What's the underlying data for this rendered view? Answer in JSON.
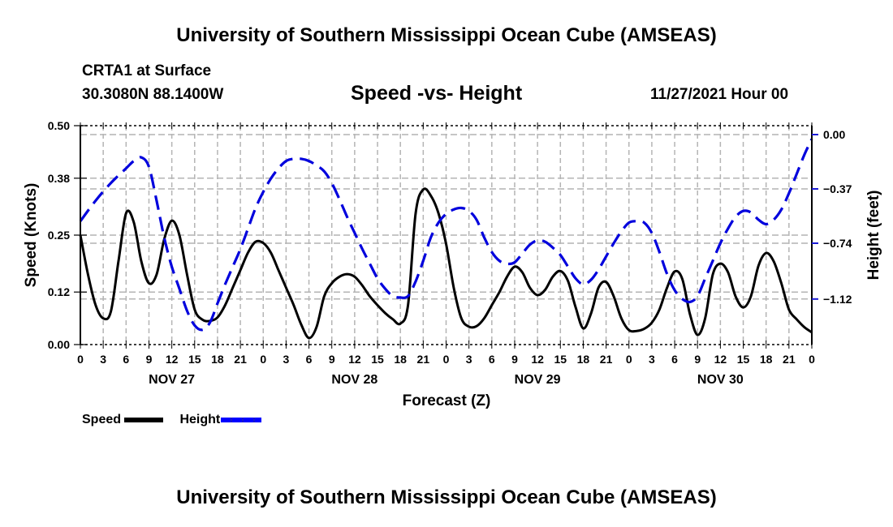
{
  "header": {
    "main_title": "University of Southern Mississippi Ocean Cube (AMSEAS)",
    "station": "CRTA1 at Surface",
    "coordinates": "30.3080N  88.1400W",
    "run_time": "11/27/2021 Hour 00",
    "footer_title": "University of Southern Mississippi Ocean Cube (AMSEAS)"
  },
  "colors": {
    "speed": "#000000",
    "height": "#0000dd",
    "grid": "#b4b4b4"
  },
  "chart_data": {
    "type": "line",
    "title": "Speed -vs- Height",
    "xlabel": "Forecast (Z)",
    "ylabel": "Speed (Knots)",
    "y2label": "Height (feet)",
    "xlim": [
      0,
      96
    ],
    "ylim": [
      0.0,
      0.5
    ],
    "y2lim": [
      -1.5,
      0.06
    ],
    "grid": true,
    "legend_position": "bottom-left",
    "x_tick_labels": [
      "0",
      "3",
      "6",
      "9",
      "12",
      "15",
      "18",
      "21",
      "0",
      "3",
      "6",
      "9",
      "12",
      "15",
      "18",
      "21",
      "0",
      "3",
      "6",
      "9",
      "12",
      "15",
      "18",
      "21",
      "0",
      "3",
      "6",
      "9",
      "12",
      "15",
      "18",
      "21",
      "0"
    ],
    "x_ticks_hours": [
      0,
      3,
      6,
      9,
      12,
      15,
      18,
      21,
      24,
      27,
      30,
      33,
      36,
      39,
      42,
      45,
      48,
      51,
      54,
      57,
      60,
      63,
      66,
      69,
      72,
      75,
      78,
      81,
      84,
      87,
      90,
      93,
      96
    ],
    "day_labels": [
      {
        "label": "NOV 27",
        "hour": 12
      },
      {
        "label": "NOV 28",
        "hour": 36
      },
      {
        "label": "NOV 29",
        "hour": 60
      },
      {
        "label": "NOV 30",
        "hour": 84
      }
    ],
    "y_ticks": [
      0.0,
      0.12,
      0.25,
      0.38,
      0.5
    ],
    "y_tick_labels": [
      "0.00",
      "0.12",
      "0.25",
      "0.38",
      "0.50"
    ],
    "y2_ticks": [
      0.0,
      -0.37,
      -0.74,
      -1.12
    ],
    "y2_tick_labels": [
      "0.00",
      "−0.37",
      "−0.74",
      "−1.12"
    ],
    "series": [
      {
        "name": "Speed",
        "axis": "left",
        "style": "solid",
        "x": [
          0,
          1,
          2,
          3,
          4,
          5,
          6,
          7,
          8,
          9,
          10,
          11,
          12,
          13,
          14,
          15,
          16,
          17,
          18,
          19,
          20,
          21,
          22,
          23,
          24,
          25,
          26,
          27,
          28,
          29,
          30,
          31,
          32,
          33,
          34,
          35,
          36,
          37,
          38,
          39,
          40,
          41,
          42,
          43,
          44,
          45,
          46,
          47,
          48,
          49,
          50,
          51,
          52,
          53,
          54,
          55,
          56,
          57,
          58,
          59,
          60,
          61,
          62,
          63,
          64,
          65,
          66,
          67,
          68,
          69,
          70,
          71,
          72,
          73,
          74,
          75,
          76,
          77,
          78,
          79,
          80,
          81,
          82,
          83,
          84,
          85,
          86,
          87,
          88,
          89,
          90,
          91,
          92,
          93,
          94,
          95,
          96
        ],
        "values": [
          0.25,
          0.16,
          0.09,
          0.06,
          0.075,
          0.19,
          0.3,
          0.28,
          0.19,
          0.14,
          0.16,
          0.24,
          0.283,
          0.25,
          0.16,
          0.08,
          0.057,
          0.054,
          0.062,
          0.09,
          0.13,
          0.17,
          0.21,
          0.235,
          0.232,
          0.21,
          0.17,
          0.13,
          0.09,
          0.045,
          0.015,
          0.04,
          0.11,
          0.14,
          0.155,
          0.161,
          0.155,
          0.135,
          0.11,
          0.09,
          0.072,
          0.058,
          0.048,
          0.09,
          0.3,
          0.354,
          0.34,
          0.3,
          0.23,
          0.13,
          0.06,
          0.041,
          0.042,
          0.06,
          0.09,
          0.12,
          0.155,
          0.178,
          0.165,
          0.13,
          0.113,
          0.125,
          0.155,
          0.168,
          0.145,
          0.085,
          0.037,
          0.07,
          0.13,
          0.143,
          0.11,
          0.06,
          0.033,
          0.031,
          0.036,
          0.05,
          0.08,
          0.13,
          0.167,
          0.15,
          0.07,
          0.022,
          0.06,
          0.16,
          0.185,
          0.165,
          0.11,
          0.085,
          0.11,
          0.18,
          0.209,
          0.19,
          0.14,
          0.08,
          0.058,
          0.04,
          0.028
        ]
      },
      {
        "name": "Height",
        "axis": "right",
        "style": "dashed",
        "x": [
          0,
          2,
          4,
          6,
          7,
          8,
          9,
          10,
          11,
          12,
          13,
          14,
          15,
          16,
          17,
          18,
          19,
          20,
          21,
          22,
          23,
          24,
          25,
          26,
          27,
          28,
          29,
          30,
          31,
          32,
          33,
          34,
          35,
          36,
          37,
          38,
          39,
          40,
          41,
          42,
          43,
          44,
          45,
          46,
          47,
          48,
          49,
          50,
          51,
          52,
          53,
          54,
          55,
          56,
          57,
          58,
          59,
          60,
          61,
          62,
          63,
          64,
          65,
          66,
          67,
          68,
          69,
          70,
          71,
          72,
          73,
          74,
          75,
          76,
          77,
          78,
          79,
          80,
          81,
          82,
          83,
          84,
          85,
          86,
          87,
          88,
          89,
          90,
          91,
          92,
          93,
          94,
          95,
          96
        ],
        "values": [
          -0.59,
          -0.45,
          -0.33,
          -0.23,
          -0.18,
          -0.155,
          -0.22,
          -0.45,
          -0.7,
          -0.9,
          -1.05,
          -1.2,
          -1.3,
          -1.33,
          -1.28,
          -1.15,
          -1.02,
          -0.9,
          -0.78,
          -0.64,
          -0.5,
          -0.39,
          -0.3,
          -0.23,
          -0.18,
          -0.165,
          -0.165,
          -0.18,
          -0.21,
          -0.25,
          -0.33,
          -0.44,
          -0.56,
          -0.67,
          -0.78,
          -0.88,
          -0.98,
          -1.05,
          -1.1,
          -1.11,
          -1.1,
          -1.0,
          -0.86,
          -0.7,
          -0.6,
          -0.54,
          -0.51,
          -0.5,
          -0.52,
          -0.58,
          -0.7,
          -0.8,
          -0.86,
          -0.88,
          -0.87,
          -0.81,
          -0.75,
          -0.72,
          -0.73,
          -0.77,
          -0.82,
          -0.9,
          -0.98,
          -1.02,
          -0.99,
          -0.92,
          -0.83,
          -0.74,
          -0.66,
          -0.6,
          -0.59,
          -0.6,
          -0.67,
          -0.8,
          -0.95,
          -1.06,
          -1.12,
          -1.14,
          -1.1,
          -0.98,
          -0.86,
          -0.74,
          -0.64,
          -0.56,
          -0.52,
          -0.53,
          -0.58,
          -0.61,
          -0.58,
          -0.51,
          -0.4,
          -0.27,
          -0.14,
          -0.03
        ]
      }
    ],
    "legend": [
      {
        "label": "Speed",
        "style": "solid"
      },
      {
        "label": "Height",
        "style": "dashed"
      }
    ]
  }
}
